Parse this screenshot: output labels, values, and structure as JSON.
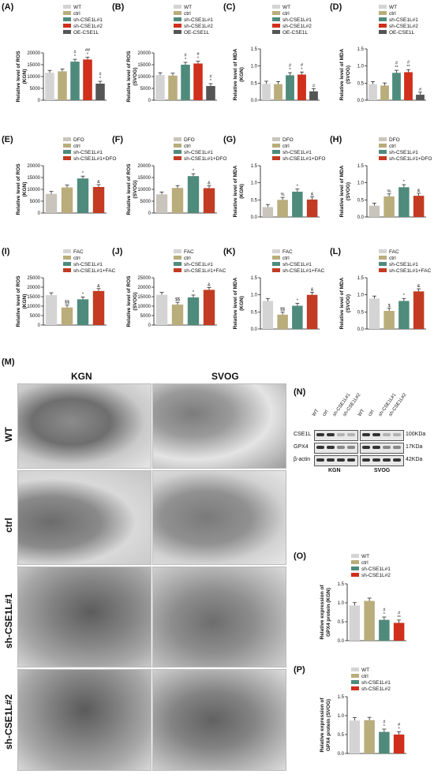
{
  "colors": {
    "WT": "#d4d4d4",
    "ctrl": "#b9ad7c",
    "sh1": "#4f8b7c",
    "sh2": "#cf2f1b",
    "OE": "#555555",
    "DFO": "#c9c5bc",
    "DFOcombo": "#c23b22",
    "FAC": "#d4d4d4",
    "FACcombo": "#c23b22"
  },
  "panel_labels": [
    "(A)",
    "(B)",
    "(C)",
    "(D)",
    "(E)",
    "(F)",
    "(G)",
    "(H)",
    "(I)",
    "(J)",
    "(K)",
    "(L)",
    "(M)",
    "(N)",
    "(O)",
    "(P)"
  ],
  "chart_data": [
    {
      "id": "A",
      "type": "bar",
      "ylabel": "Relative level of ROS\n(KGN)",
      "ylim": [
        0,
        20000
      ],
      "yticks": [
        0,
        5000,
        10000,
        15000,
        20000
      ],
      "series": [
        {
          "name": "WT",
          "value": 11600
        },
        {
          "name": "ctrl",
          "value": 12200
        },
        {
          "name": "sh-CSE1L#1",
          "value": 16300
        },
        {
          "name": "sh-CSE1L#2",
          "value": 17200
        },
        {
          "name": "OE-CSE1L",
          "value": 7000
        }
      ],
      "annotations": [
        "",
        "",
        "#\n*",
        "##\n*",
        "#\n*"
      ]
    },
    {
      "id": "B",
      "type": "bar",
      "ylabel": "Relative level of ROS\n(SVOG)",
      "ylim": [
        0,
        20000
      ],
      "yticks": [
        0,
        5000,
        10000,
        15000,
        20000
      ],
      "series": [
        {
          "name": "WT",
          "value": 10600
        },
        {
          "name": "ctrl",
          "value": 10400
        },
        {
          "name": "sh-CSE1L#1",
          "value": 15000
        },
        {
          "name": "sh-CSE1L#2",
          "value": 15500
        },
        {
          "name": "OE-CSE1L",
          "value": 6000
        }
      ],
      "annotations": [
        "",
        "",
        "#\n*",
        "#\n*",
        "#\n*"
      ]
    },
    {
      "id": "C",
      "type": "bar",
      "ylabel": "Relative level of MDA\n(KGN)",
      "ylim": [
        0,
        1.5
      ],
      "yticks": [
        0,
        0.5,
        1.0,
        1.5
      ],
      "series": [
        {
          "name": "WT",
          "value": 0.48
        },
        {
          "name": "ctrl",
          "value": 0.47
        },
        {
          "name": "sh-CSE1L#1",
          "value": 0.73
        },
        {
          "name": "sh-CSE1L#2",
          "value": 0.75
        },
        {
          "name": "OE-CSE1L",
          "value": 0.26
        }
      ],
      "annotations": [
        "",
        "",
        "#\n*",
        "#\n*",
        "#"
      ]
    },
    {
      "id": "D",
      "type": "bar",
      "ylabel": "Relative level of MDA\n(SVOG)",
      "ylim": [
        0,
        1.5
      ],
      "yticks": [
        0,
        0.5,
        1.0,
        1.5
      ],
      "series": [
        {
          "name": "WT",
          "value": 0.47
        },
        {
          "name": "ctrl",
          "value": 0.43
        },
        {
          "name": "sh-CSE1L#1",
          "value": 0.8
        },
        {
          "name": "sh-CSE1L#2",
          "value": 0.82
        },
        {
          "name": "OE-CSE1L",
          "value": 0.16
        }
      ],
      "annotations": [
        "",
        "",
        "#\n**",
        "#\n**",
        "#"
      ]
    },
    {
      "id": "E",
      "type": "bar",
      "ylabel": "Relative level of ROS\n(KGN)",
      "ylim": [
        0,
        20000
      ],
      "yticks": [
        0,
        5000,
        10000,
        15000,
        20000
      ],
      "series": [
        {
          "name": "DFO",
          "value": 8100
        },
        {
          "name": "ctrl",
          "value": 10800
        },
        {
          "name": "sh-CSE1L#1",
          "value": 14600
        },
        {
          "name": "sh-CSE1L#1+DFO",
          "value": 11000
        }
      ],
      "annotations": [
        "",
        "",
        "*",
        "&"
      ]
    },
    {
      "id": "F",
      "type": "bar",
      "ylabel": "Relative level of ROS\n(SVOG)",
      "ylim": [
        0,
        20000
      ],
      "yticks": [
        0,
        5000,
        10000,
        15000,
        20000
      ],
      "series": [
        {
          "name": "DFO",
          "value": 7900
        },
        {
          "name": "ctrl",
          "value": 10600
        },
        {
          "name": "sh-CSE1L#1",
          "value": 15600
        },
        {
          "name": "sh-CSE1L#1+DFO",
          "value": 10500
        }
      ],
      "annotations": [
        "",
        "",
        "*",
        "&"
      ]
    },
    {
      "id": "G",
      "type": "bar",
      "ylabel": "Relative level of MDA\n(KGN)",
      "ylim": [
        0,
        1.5
      ],
      "yticks": [
        0,
        0.5,
        1.0,
        1.5
      ],
      "series": [
        {
          "name": "DFO",
          "value": 0.29
        },
        {
          "name": "ctrl",
          "value": 0.5
        },
        {
          "name": "sh-CSE1L#1",
          "value": 0.74
        },
        {
          "name": "sh-CSE1L#1+DFO",
          "value": 0.51
        }
      ],
      "annotations": [
        "",
        "%",
        "*",
        "&"
      ]
    },
    {
      "id": "H",
      "type": "bar",
      "ylabel": "Relative level of MDA\n(SVOG)",
      "ylim": [
        0,
        1.5
      ],
      "yticks": [
        0,
        0.5,
        1.0,
        1.5
      ],
      "series": [
        {
          "name": "DFO",
          "value": 0.33
        },
        {
          "name": "ctrl",
          "value": 0.6
        },
        {
          "name": "sh-CSE1L#1",
          "value": 0.87
        },
        {
          "name": "sh-CSE1L#1+DFO",
          "value": 0.62
        }
      ],
      "annotations": [
        "",
        "%",
        "*",
        "&"
      ]
    },
    {
      "id": "I",
      "type": "bar",
      "ylabel": "Relative level of ROS\n(KGN)",
      "ylim": [
        0,
        25000
      ],
      "yticks": [
        0,
        5000,
        10000,
        15000,
        20000,
        25000
      ],
      "series": [
        {
          "name": "FAC",
          "value": 15800
        },
        {
          "name": "ctrl",
          "value": 9300
        },
        {
          "name": "sh-CSE1L#1",
          "value": 13600
        },
        {
          "name": "sh-CSE1L#1+FAC",
          "value": 18000
        }
      ],
      "annotations": [
        "",
        "$$",
        "*",
        "&"
      ]
    },
    {
      "id": "J",
      "type": "bar",
      "ylabel": "Relative level of ROS\n(SVOG)",
      "ylim": [
        0,
        25000
      ],
      "yticks": [
        0,
        5000,
        10000,
        15000,
        20000,
        25000
      ],
      "series": [
        {
          "name": "FAC",
          "value": 16000
        },
        {
          "name": "ctrl",
          "value": 10800
        },
        {
          "name": "sh-CSE1L#1",
          "value": 14600
        },
        {
          "name": "sh-CSE1L#1+FAC",
          "value": 18600
        }
      ],
      "annotations": [
        "",
        "$$",
        "*",
        "&"
      ]
    },
    {
      "id": "K",
      "type": "bar",
      "ylabel": "Relative level of MDA\n(KGN)",
      "ylim": [
        0,
        1.5
      ],
      "yticks": [
        0,
        0.5,
        1.0,
        1.5
      ],
      "series": [
        {
          "name": "FAC",
          "value": 0.82
        },
        {
          "name": "ctrl",
          "value": 0.42
        },
        {
          "name": "sh-CSE1L#1",
          "value": 0.68
        },
        {
          "name": "sh-CSE1L#1+FAC",
          "value": 1.0
        }
      ],
      "annotations": [
        "",
        "$$",
        "*",
        "&"
      ]
    },
    {
      "id": "L",
      "type": "bar",
      "ylabel": "Relative level of MDA\n(SVOG)",
      "ylim": [
        0,
        1.5
      ],
      "yticks": [
        0,
        0.5,
        1.0,
        1.5
      ],
      "series": [
        {
          "name": "FAC",
          "value": 0.89
        },
        {
          "name": "ctrl",
          "value": 0.53
        },
        {
          "name": "sh-CSE1L#1",
          "value": 0.82
        },
        {
          "name": "sh-CSE1L#1+FAC",
          "value": 1.1
        }
      ],
      "annotations": [
        "",
        "$",
        "*",
        "&"
      ]
    },
    {
      "id": "O",
      "type": "bar",
      "ylabel": "Relative expression of\nGPX4 protein (KGN)",
      "ylim": [
        0,
        1.5
      ],
      "yticks": [
        0,
        0.5,
        1.0,
        1.5
      ],
      "series": [
        {
          "name": "WT",
          "value": 0.93
        },
        {
          "name": "ctrl",
          "value": 1.05
        },
        {
          "name": "sh-CSE1L#1",
          "value": 0.55
        },
        {
          "name": "sh-CSE1L#2",
          "value": 0.47
        }
      ],
      "annotations": [
        "",
        "",
        "#\n*",
        "#\n**"
      ]
    },
    {
      "id": "P",
      "type": "bar",
      "ylabel": "Relative expression of\nGPX4 protein (SVOG)",
      "ylim": [
        0,
        1.5
      ],
      "yticks": [
        0,
        0.5,
        1.0,
        1.5
      ],
      "series": [
        {
          "name": "WT",
          "value": 0.87
        },
        {
          "name": "ctrl",
          "value": 0.88
        },
        {
          "name": "sh-CSE1L#1",
          "value": 0.57
        },
        {
          "name": "sh-CSE1L#2",
          "value": 0.5
        }
      ],
      "annotations": [
        "",
        "",
        "#\n*",
        "#\n*"
      ]
    }
  ],
  "em": {
    "col_labels": [
      "KGN",
      "SVOG"
    ],
    "row_labels": [
      "WT",
      "ctrl",
      "sh-CSE1L#1",
      "sh-CSE1L#2"
    ]
  },
  "western": {
    "lanes": [
      "WT",
      "ctrl",
      "sh-CSE1L#1",
      "sh-CSE1L#2",
      "WT",
      "ctrl",
      "sh-CSE1L#1",
      "sh-CSE1L#2"
    ],
    "rows": [
      "CSE1L",
      "GPX4",
      "β-actin"
    ],
    "sizes": [
      "100KDa",
      "17KDa",
      "42KDa"
    ],
    "groups": [
      "KGN",
      "SVOG"
    ]
  }
}
